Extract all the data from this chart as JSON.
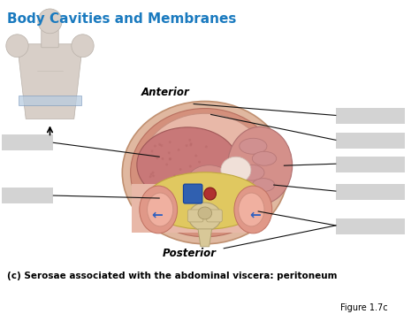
{
  "title": "Body Cavities and Membranes",
  "title_color": "#1a7abf",
  "title_fontsize": 11,
  "caption": "(c) Serosae associated with the abdominal viscera: peritoneum",
  "figure_label": "Figure 1.7c",
  "background_color": "#ffffff",
  "label_anterior": "Anterior",
  "label_posterior": "Posterior",
  "annotation_color": "#111111",
  "outer_oval_color": "#d4958a",
  "inner_cavity_color": "#e8b8a8",
  "liver_color": "#c07878",
  "intestine_color": "#d4908a",
  "retro_fat_color": "#e0c860",
  "vertebra_color": "#d4c090",
  "kidney_color": "#d49080",
  "aorta_color": "#3060b0",
  "vena_color": "#b03030",
  "skin_color": "#e0c8b0",
  "torso_color": "#d8cfc8",
  "band_color": "#b8cce0",
  "gray_box_color": "#c8c8c8"
}
